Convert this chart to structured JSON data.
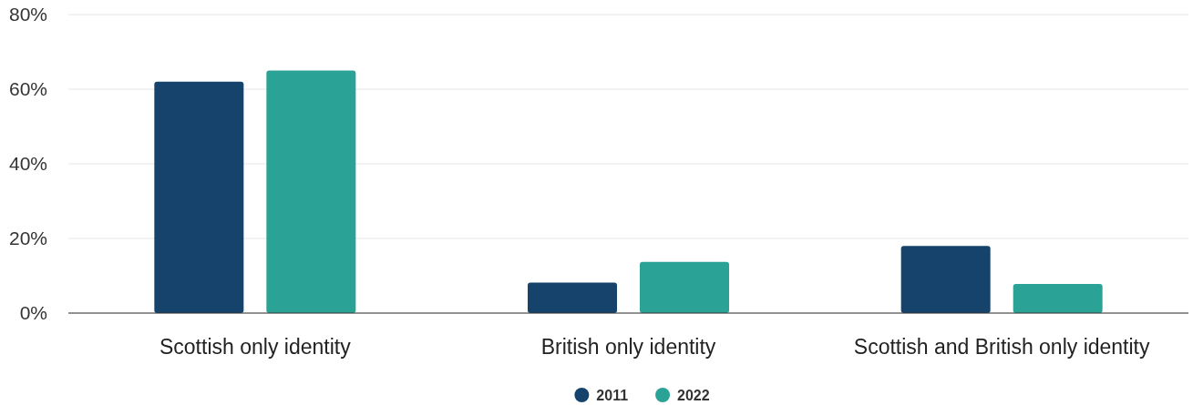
{
  "chart_data": {
    "type": "bar",
    "categories": [
      "Scottish only identity",
      "British only identity",
      "Scottish and British only identity"
    ],
    "series": [
      {
        "name": "2011",
        "color": "#15436b",
        "values": [
          62,
          8.2,
          18
        ]
      },
      {
        "name": "2022",
        "color": "#2aa396",
        "values": [
          65,
          13.7,
          7.8
        ]
      }
    ],
    "ylim": [
      0,
      80
    ],
    "yticks": [
      {
        "value": 0,
        "label": "0%"
      },
      {
        "value": 20,
        "label": "20%"
      },
      {
        "value": 40,
        "label": "40%"
      },
      {
        "value": 60,
        "label": "60%"
      },
      {
        "value": 80,
        "label": "80%"
      }
    ],
    "grid": "y",
    "legend": "bottom"
  }
}
